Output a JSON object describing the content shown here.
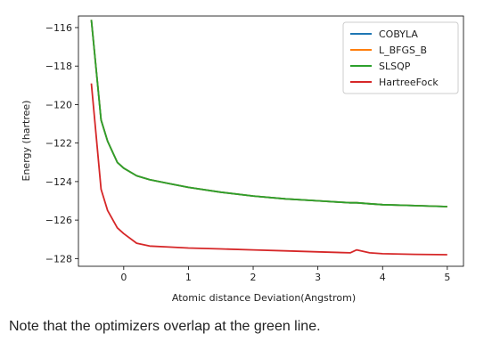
{
  "caption": "Note that the optimizers overlap at the green line.",
  "chart_data": {
    "type": "line",
    "title": "",
    "xlabel": "Atomic distance Deviation(Angstrom)",
    "ylabel": "Energy (hartree)",
    "xlim": [
      -0.7,
      5.25
    ],
    "ylim": [
      -128.4,
      -115.4
    ],
    "xticks": [
      0,
      1,
      2,
      3,
      4,
      5
    ],
    "yticks": [
      -116,
      -118,
      -120,
      -122,
      -124,
      -126,
      -128
    ],
    "grid": false,
    "legend_position": "top-right",
    "x": [
      -0.5,
      -0.35,
      -0.25,
      -0.1,
      0.0,
      0.2,
      0.4,
      0.7,
      1.0,
      1.5,
      2.0,
      2.5,
      3.0,
      3.5,
      3.6,
      3.8,
      4.0,
      4.5,
      5.0
    ],
    "series": [
      {
        "name": "COBYLA",
        "color": "#1f77b4",
        "values": [
          -115.6,
          -120.8,
          -121.9,
          -123.0,
          -123.3,
          -123.7,
          -123.9,
          -124.1,
          -124.3,
          -124.55,
          -124.75,
          -124.9,
          -125.0,
          -125.1,
          -125.1,
          -125.15,
          -125.2,
          -125.25,
          -125.3
        ]
      },
      {
        "name": "L_BFGS_B",
        "color": "#ff7f0e",
        "values": [
          -115.6,
          -120.8,
          -121.9,
          -123.0,
          -123.3,
          -123.7,
          -123.9,
          -124.1,
          -124.3,
          -124.55,
          -124.75,
          -124.9,
          -125.0,
          -125.1,
          -125.1,
          -125.15,
          -125.2,
          -125.25,
          -125.3
        ]
      },
      {
        "name": "SLSQP",
        "color": "#2ca02c",
        "values": [
          -115.6,
          -120.8,
          -121.9,
          -123.0,
          -123.3,
          -123.7,
          -123.9,
          -124.1,
          -124.3,
          -124.55,
          -124.75,
          -124.9,
          -125.0,
          -125.1,
          -125.1,
          -125.15,
          -125.2,
          -125.25,
          -125.3
        ]
      },
      {
        "name": "HartreeFock",
        "color": "#d62728",
        "values": [
          -118.9,
          -124.4,
          -125.5,
          -126.4,
          -126.7,
          -127.2,
          -127.35,
          -127.4,
          -127.45,
          -127.5,
          -127.55,
          -127.6,
          -127.65,
          -127.7,
          -127.55,
          -127.7,
          -127.75,
          -127.78,
          -127.8
        ]
      }
    ]
  }
}
